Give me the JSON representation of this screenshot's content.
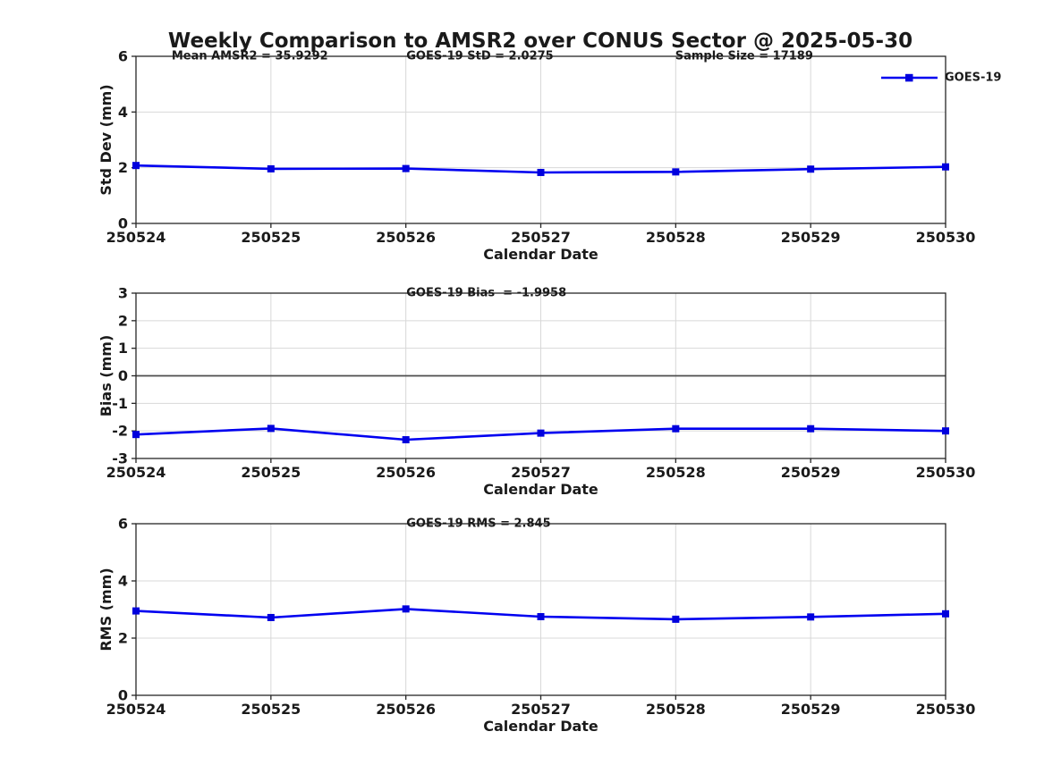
{
  "title": "Weekly Comparison to AMSR2 over CONUS Sector @ 2025-05-30",
  "legend": {
    "label": "GOES-19"
  },
  "colors": {
    "line": "#0000f0",
    "marker": "#0000dd",
    "grid": "#d8d8d8",
    "axis": "#262626",
    "zero_line": "#4d4d4d",
    "text": "#1a1a1a"
  },
  "chart_data": [
    {
      "type": "line",
      "panel": "std-dev",
      "xlabel": "Calendar Date",
      "ylabel": "Std Dev (mm)",
      "categories": [
        "250524",
        "250525",
        "250526",
        "250527",
        "250528",
        "250529",
        "250530"
      ],
      "series": [
        {
          "name": "GOES-19",
          "values": [
            2.08,
            1.96,
            1.97,
            1.83,
            1.85,
            1.95,
            2.03
          ]
        }
      ],
      "ylim": [
        0,
        6
      ],
      "yticks": [
        0,
        2,
        4,
        6
      ],
      "grid": true,
      "zero_line": false,
      "legend_position": "top-right",
      "annotations": [
        {
          "text": "Mean AMSR2 = 35.9292",
          "xfrac": 0.044
        },
        {
          "text": "GOES-19 StD = 2.0275",
          "xfrac": 0.334
        },
        {
          "text": "Sample Size = 17189",
          "xfrac": 0.666
        }
      ]
    },
    {
      "type": "line",
      "panel": "bias",
      "xlabel": "Calendar Date",
      "ylabel": "Bias (mm)",
      "categories": [
        "250524",
        "250525",
        "250526",
        "250527",
        "250528",
        "250529",
        "250530"
      ],
      "series": [
        {
          "name": "GOES-19",
          "values": [
            -2.13,
            -1.91,
            -2.32,
            -2.08,
            -1.92,
            -1.92,
            -2.0
          ]
        }
      ],
      "ylim": [
        -3,
        3
      ],
      "yticks": [
        -3,
        -2,
        -1,
        0,
        1,
        2,
        3
      ],
      "grid": true,
      "zero_line": true,
      "legend_position": "none",
      "annotations": [
        {
          "text": "GOES-19 Bias  = -1.9958",
          "xfrac": 0.334
        }
      ]
    },
    {
      "type": "line",
      "panel": "rms",
      "xlabel": "Calendar Date",
      "ylabel": "RMS (mm)",
      "categories": [
        "250524",
        "250525",
        "250526",
        "250527",
        "250528",
        "250529",
        "250530"
      ],
      "series": [
        {
          "name": "GOES-19",
          "values": [
            2.95,
            2.72,
            3.02,
            2.75,
            2.66,
            2.74,
            2.85
          ]
        }
      ],
      "ylim": [
        0,
        6
      ],
      "yticks": [
        0,
        2,
        4,
        6
      ],
      "grid": true,
      "zero_line": false,
      "legend_position": "none",
      "annotations": [
        {
          "text": "GOES-19 RMS = 2.845",
          "xfrac": 0.334
        }
      ]
    }
  ]
}
